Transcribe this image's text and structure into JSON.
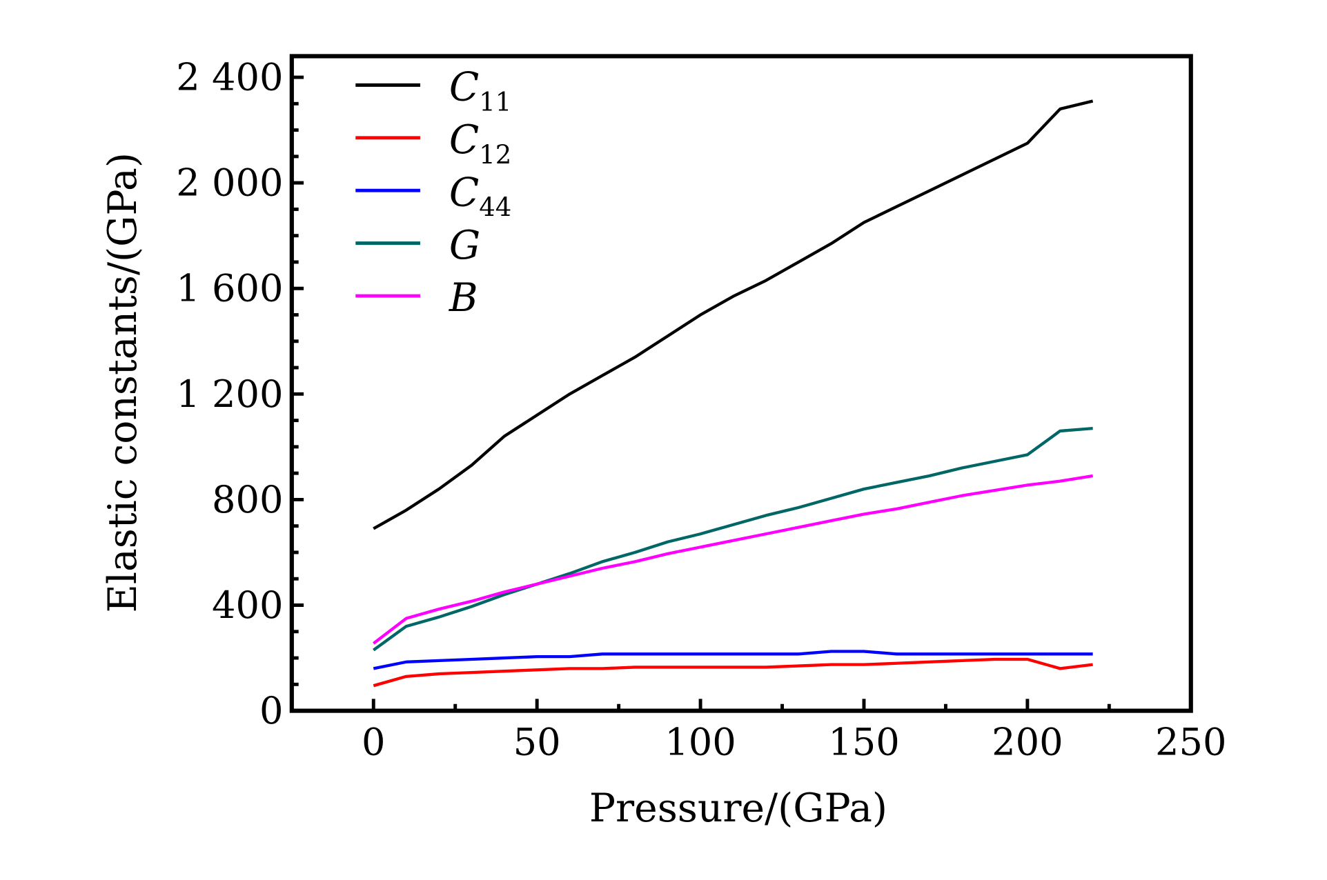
{
  "chart_data": {
    "type": "line",
    "title": "",
    "xlabel": "Pressure/(GPa)",
    "ylabel": "Elastic constants/(GPa)",
    "xlim": [
      -25,
      250
    ],
    "ylim": [
      0,
      2480
    ],
    "xticks": [
      0,
      50,
      100,
      150,
      200,
      250
    ],
    "xtick_labels": [
      "0",
      "50",
      "100",
      "150",
      "200",
      "250"
    ],
    "yticks": [
      0,
      400,
      800,
      1200,
      1600,
      2000,
      2400
    ],
    "ytick_labels": [
      "0",
      "400",
      "800",
      "1 200",
      "1 600",
      "2 000",
      "2 400"
    ],
    "grid": false,
    "legend_position": "top-left",
    "x": [
      0,
      10,
      20,
      30,
      40,
      50,
      60,
      70,
      80,
      90,
      100,
      110,
      120,
      130,
      140,
      150,
      160,
      170,
      180,
      190,
      200,
      210,
      220
    ],
    "series": [
      {
        "name": "C",
        "sub": "11",
        "color": "#000000",
        "values": [
          690,
          760,
          840,
          930,
          1040,
          1120,
          1200,
          1270,
          1340,
          1420,
          1500,
          1570,
          1630,
          1700,
          1770,
          1850,
          1910,
          1970,
          2030,
          2090,
          2150,
          2280,
          2310
        ]
      },
      {
        "name": "C",
        "sub": "12",
        "color": "#ff0000",
        "values": [
          95,
          130,
          140,
          145,
          150,
          155,
          160,
          160,
          165,
          165,
          165,
          165,
          165,
          170,
          175,
          175,
          180,
          185,
          190,
          195,
          195,
          160,
          175
        ]
      },
      {
        "name": "C",
        "sub": "44",
        "color": "#0000ff",
        "values": [
          160,
          185,
          190,
          195,
          200,
          205,
          205,
          215,
          215,
          215,
          215,
          215,
          215,
          215,
          225,
          225,
          215,
          215,
          215,
          215,
          215,
          215,
          215
        ]
      },
      {
        "name": "G",
        "sub": "",
        "color": "#006666",
        "values": [
          230,
          320,
          355,
          395,
          440,
          480,
          520,
          565,
          600,
          640,
          670,
          705,
          740,
          770,
          805,
          840,
          865,
          890,
          920,
          945,
          970,
          1060,
          1070
        ]
      },
      {
        "name": "B",
        "sub": "",
        "color": "#ff00ff",
        "values": [
          255,
          350,
          385,
          415,
          450,
          480,
          510,
          540,
          565,
          595,
          620,
          645,
          670,
          695,
          720,
          745,
          765,
          790,
          815,
          835,
          855,
          870,
          890
        ]
      }
    ]
  }
}
